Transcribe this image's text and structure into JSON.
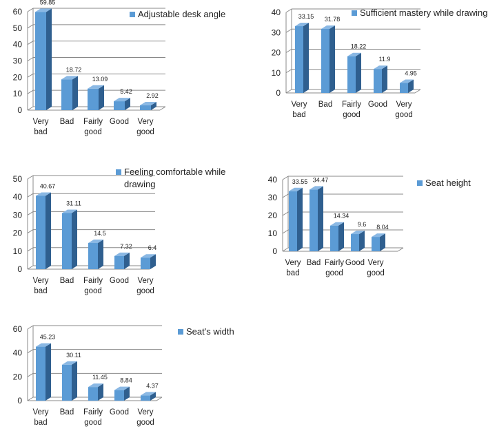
{
  "colors": {
    "bar_front": "#5b9bd5",
    "bar_side": "#2f5f8f",
    "bar_top": "#8ab8e4",
    "grid": "#898989",
    "text": "#222222"
  },
  "chart_data": [
    {
      "type": "bar",
      "categories": [
        [
          "Very",
          "bad"
        ],
        [
          "Bad"
        ],
        [
          "Fairly",
          "good"
        ],
        [
          "Good"
        ],
        [
          "Very",
          "good"
        ]
      ],
      "series": [
        {
          "name": "Adjustable desk angle",
          "values": [
            59.85,
            18.72,
            13.09,
            5.42,
            2.92
          ]
        }
      ],
      "ylim": [
        0,
        60
      ],
      "yticks": [
        0,
        10,
        20,
        30,
        40,
        50,
        60
      ],
      "legend_lines": [
        "Adjustable desk angle"
      ],
      "legend_position": "top-right",
      "grid": true
    },
    {
      "type": "bar",
      "categories": [
        [
          "Very",
          "bad"
        ],
        [
          "Bad"
        ],
        [
          "Fairly",
          "good"
        ],
        [
          "Good"
        ],
        [
          "Very",
          "good"
        ]
      ],
      "series": [
        {
          "name": "Sufficient mastery while drawing",
          "values": [
            33.15,
            31.78,
            18.22,
            11.9,
            4.95
          ]
        }
      ],
      "ylim": [
        0,
        40
      ],
      "yticks": [
        0,
        10,
        20,
        30,
        40
      ],
      "legend_lines": [
        "Sufficient mastery while drawing"
      ],
      "legend_position": "top-right",
      "grid": true
    },
    {
      "type": "bar",
      "categories": [
        [
          "Very",
          "bad"
        ],
        [
          "Bad"
        ],
        [
          "Fairly",
          "good"
        ],
        [
          "Good"
        ],
        [
          "Very",
          "good"
        ]
      ],
      "series": [
        {
          "name": "Feeling comfortable while drawing",
          "values": [
            40.67,
            31.11,
            14.5,
            7.32,
            6.4
          ]
        }
      ],
      "ylim": [
        0,
        50
      ],
      "yticks": [
        0,
        10,
        20,
        30,
        40,
        50
      ],
      "legend_lines": [
        "Feeling comfortable while",
        "drawing"
      ],
      "legend_position": "top-right",
      "grid": true
    },
    {
      "type": "bar",
      "categories": [
        [
          "Very",
          "bad"
        ],
        [
          "Bad"
        ],
        [
          "Fairly",
          "good"
        ],
        [
          "Good"
        ],
        [
          "Very",
          "good"
        ]
      ],
      "series": [
        {
          "name": "Seat height",
          "values": [
            33.55,
            34.47,
            14.34,
            9.6,
            8.04
          ]
        }
      ],
      "ylim": [
        0,
        40
      ],
      "yticks": [
        0,
        10,
        20,
        30,
        40
      ],
      "legend_lines": [
        "Seat height"
      ],
      "legend_position": "right",
      "grid": true
    },
    {
      "type": "bar",
      "categories": [
        [
          "Very",
          "bad"
        ],
        [
          "Bad"
        ],
        [
          "Fairly",
          "good"
        ],
        [
          "Good"
        ],
        [
          "Very",
          "good"
        ]
      ],
      "series": [
        {
          "name": "Seat's width",
          "values": [
            45.23,
            30.11,
            11.45,
            8.84,
            4.37
          ]
        }
      ],
      "ylim": [
        0,
        60
      ],
      "yticks": [
        0,
        20,
        40,
        60
      ],
      "legend_lines": [
        "Seat's width"
      ],
      "legend_position": "top-right",
      "grid": true
    }
  ]
}
